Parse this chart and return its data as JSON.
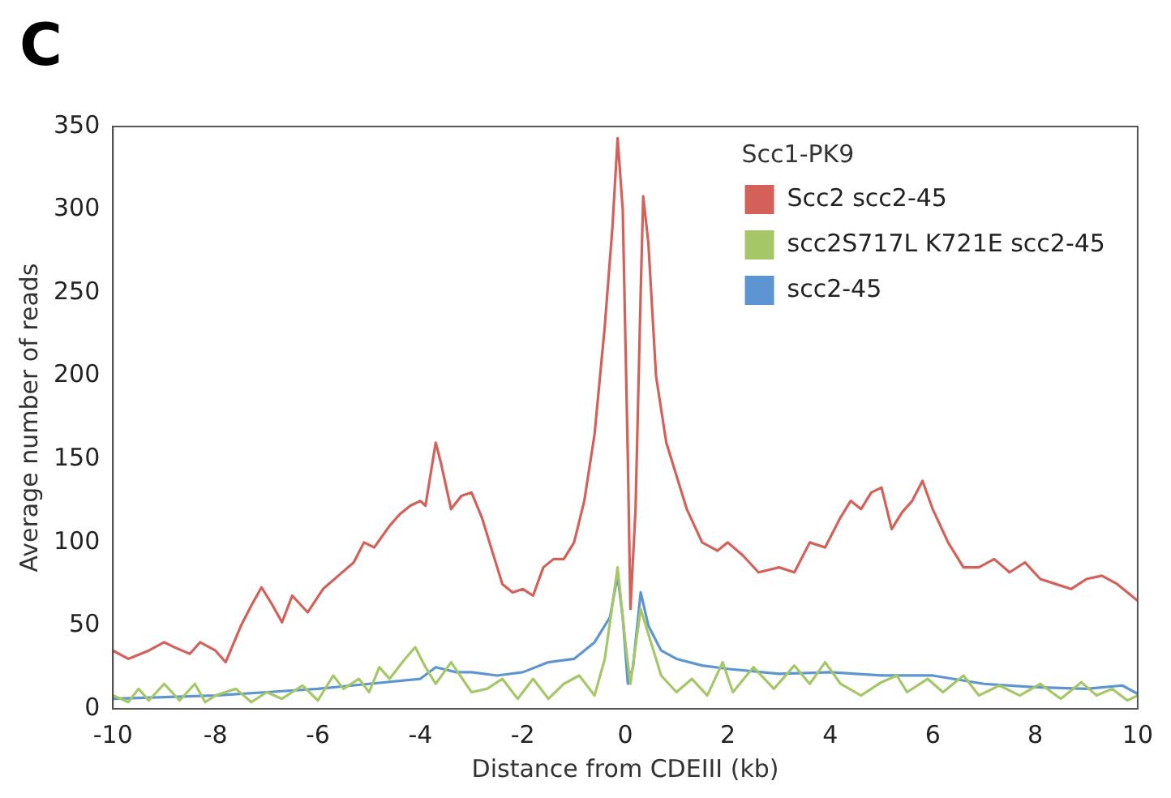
{
  "chart_data": {
    "type": "line",
    "xlabel": "Distance from CDEIII (kb)",
    "ylabel": "Average number of reads",
    "legend_title": "Scc1-PK9",
    "legend": "top right",
    "grid": false,
    "marker": "none",
    "line_style": "solid",
    "annotations": [
      "C"
    ],
    "xlim": [
      -10,
      10
    ],
    "xticks": [
      -10,
      -8,
      -6,
      -4,
      -2,
      0,
      2,
      4,
      6,
      8,
      10
    ],
    "ylim": [
      0,
      350
    ],
    "yticks": [
      0,
      50,
      100,
      150,
      200,
      250,
      300,
      350
    ],
    "series": [
      {
        "name": "Scc2 scc2-45",
        "color": "#d4605a",
        "x": [
          -10,
          -9.7,
          -9.3,
          -9,
          -8.8,
          -8.5,
          -8.3,
          -8,
          -7.8,
          -7.5,
          -7.3,
          -7.1,
          -6.9,
          -6.7,
          -6.5,
          -6.2,
          -5.9,
          -5.6,
          -5.3,
          -5.1,
          -4.9,
          -4.6,
          -4.4,
          -4.2,
          -4,
          -3.9,
          -3.7,
          -3.6,
          -3.4,
          -3.2,
          -3,
          -2.8,
          -2.6,
          -2.4,
          -2.2,
          -2,
          -1.8,
          -1.6,
          -1.4,
          -1.2,
          -1,
          -0.8,
          -0.6,
          -0.4,
          -0.25,
          -0.15,
          -0.05,
          0.05,
          0.1,
          0.2,
          0.3,
          0.35,
          0.45,
          0.6,
          0.8,
          1,
          1.2,
          1.5,
          1.8,
          2,
          2.3,
          2.6,
          3,
          3.3,
          3.6,
          3.9,
          4.2,
          4.4,
          4.6,
          4.8,
          5,
          5.2,
          5.4,
          5.6,
          5.8,
          6,
          6.3,
          6.6,
          6.9,
          7.2,
          7.5,
          7.8,
          8.1,
          8.4,
          8.7,
          9,
          9.3,
          9.6,
          9.8,
          10
        ],
        "values": [
          35,
          30,
          35,
          40,
          37,
          33,
          40,
          35,
          28,
          50,
          62,
          73,
          63,
          52,
          68,
          58,
          72,
          80,
          88,
          100,
          97,
          110,
          117,
          122,
          125,
          122,
          160,
          148,
          120,
          128,
          130,
          115,
          95,
          75,
          70,
          72,
          68,
          85,
          90,
          90,
          100,
          125,
          165,
          230,
          290,
          343,
          300,
          150,
          60,
          120,
          250,
          308,
          280,
          200,
          160,
          140,
          120,
          100,
          95,
          100,
          92,
          82,
          85,
          82,
          100,
          97,
          115,
          125,
          120,
          130,
          133,
          108,
          118,
          125,
          137,
          120,
          100,
          85,
          85,
          90,
          82,
          88,
          78,
          75,
          72,
          78,
          80,
          75,
          70,
          65
        ]
      },
      {
        "name": "scc2S717L K721E scc2-45",
        "color": "#a5c767",
        "x": [
          -10,
          -9.7,
          -9.5,
          -9.3,
          -9,
          -8.7,
          -8.4,
          -8.2,
          -8,
          -7.6,
          -7.3,
          -7,
          -6.7,
          -6.3,
          -6,
          -5.7,
          -5.5,
          -5.2,
          -5,
          -4.8,
          -4.6,
          -4.3,
          -4.1,
          -3.9,
          -3.7,
          -3.4,
          -3,
          -2.7,
          -2.4,
          -2.1,
          -1.8,
          -1.5,
          -1.2,
          -0.9,
          -0.6,
          -0.4,
          -0.15,
          0,
          0.1,
          0.3,
          0.5,
          0.7,
          1,
          1.3,
          1.6,
          1.9,
          2.1,
          2.5,
          2.9,
          3.3,
          3.6,
          3.9,
          4.2,
          4.6,
          5,
          5.3,
          5.5,
          5.9,
          6.2,
          6.6,
          6.9,
          7.3,
          7.7,
          8.1,
          8.5,
          8.9,
          9.2,
          9.5,
          9.8,
          10
        ],
        "values": [
          8,
          4,
          12,
          5,
          15,
          5,
          15,
          4,
          8,
          12,
          4,
          10,
          6,
          14,
          5,
          20,
          12,
          18,
          10,
          25,
          18,
          30,
          37,
          25,
          15,
          28,
          10,
          12,
          18,
          6,
          18,
          6,
          15,
          20,
          8,
          30,
          85,
          40,
          15,
          60,
          40,
          20,
          10,
          18,
          8,
          28,
          10,
          25,
          12,
          26,
          15,
          28,
          15,
          8,
          16,
          20,
          10,
          18,
          10,
          20,
          8,
          14,
          8,
          15,
          6,
          16,
          8,
          12,
          5,
          8
        ]
      },
      {
        "name": "scc2-45",
        "color": "#5d95d3",
        "x": [
          -10,
          -9,
          -8,
          -7,
          -6,
          -5,
          -4,
          -3.7,
          -3.3,
          -3,
          -2.5,
          -2,
          -1.5,
          -1,
          -0.6,
          -0.3,
          -0.15,
          -0.05,
          0.05,
          0.15,
          0.3,
          0.45,
          0.7,
          1,
          1.5,
          2,
          3,
          4,
          5,
          6,
          7,
          8,
          9,
          9.7,
          10
        ],
        "values": [
          6,
          7,
          8,
          10,
          12,
          15,
          18,
          25,
          22,
          22,
          20,
          22,
          28,
          30,
          40,
          55,
          80,
          55,
          15,
          25,
          70,
          50,
          35,
          30,
          26,
          24,
          21,
          22,
          20,
          20,
          15,
          13,
          12,
          14,
          9
        ]
      }
    ]
  }
}
